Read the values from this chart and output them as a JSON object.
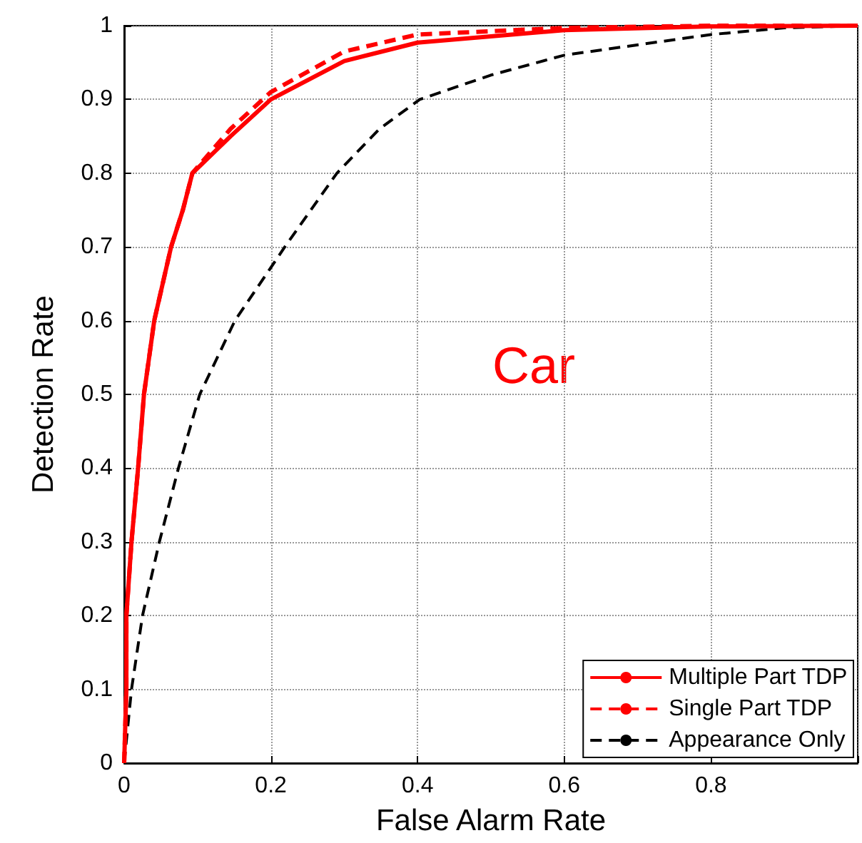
{
  "chart_data": {
    "type": "line",
    "xlabel": "False Alarm Rate",
    "ylabel": "Detection Rate",
    "annotations": [
      "Car"
    ],
    "xlim": [
      0,
      1
    ],
    "xticks": [
      0,
      0.2,
      0.4,
      0.6,
      0.8,
      {
        "value": 1,
        "label": null
      }
    ],
    "ylim": [
      0,
      1
    ],
    "yticks": [
      0,
      0.1,
      0.2,
      0.3,
      0.4,
      0.5,
      0.6,
      0.7,
      0.8,
      0.9,
      1
    ],
    "grid": true,
    "legend": "bottom right",
    "marker": "none",
    "series": [
      {
        "name": "Multiple Part TDP",
        "color": "#ff0000",
        "line_style": "solid",
        "x": [
          0,
          0.003,
          0.003,
          0.01,
          0.019,
          0.027,
          0.041,
          0.064,
          0.08,
          0.093,
          0.145,
          0.2,
          0.3,
          0.4,
          0.6,
          0.8,
          1
        ],
        "values": [
          0,
          0.1,
          0.2,
          0.3,
          0.4,
          0.5,
          0.6,
          0.7,
          0.75,
          0.8,
          0.85,
          0.9,
          0.952,
          0.977,
          0.994,
          0.999,
          1
        ]
      },
      {
        "name": "Single Part TDP",
        "color": "#ff0000",
        "line_style": "dashed",
        "x": [
          0,
          0.003,
          0.003,
          0.01,
          0.019,
          0.027,
          0.041,
          0.064,
          0.08,
          0.093,
          0.145,
          0.2,
          0.3,
          0.4,
          0.6,
          0.8,
          1
        ],
        "values": [
          0,
          0.1,
          0.2,
          0.3,
          0.4,
          0.5,
          0.6,
          0.7,
          0.75,
          0.8,
          0.86,
          0.91,
          0.965,
          0.988,
          0.997,
          1,
          1
        ]
      },
      {
        "name": "Appearance Only",
        "color": "#000000",
        "line_style": "dashed",
        "x": [
          0,
          0.01,
          0.025,
          0.048,
          0.074,
          0.103,
          0.151,
          0.219,
          0.29,
          0.348,
          0.403,
          0.5,
          0.6,
          0.8,
          0.9,
          1
        ],
        "values": [
          0,
          0.1,
          0.2,
          0.3,
          0.4,
          0.5,
          0.6,
          0.7,
          0.8,
          0.86,
          0.9,
          0.933,
          0.96,
          0.988,
          0.997,
          1
        ]
      }
    ]
  }
}
